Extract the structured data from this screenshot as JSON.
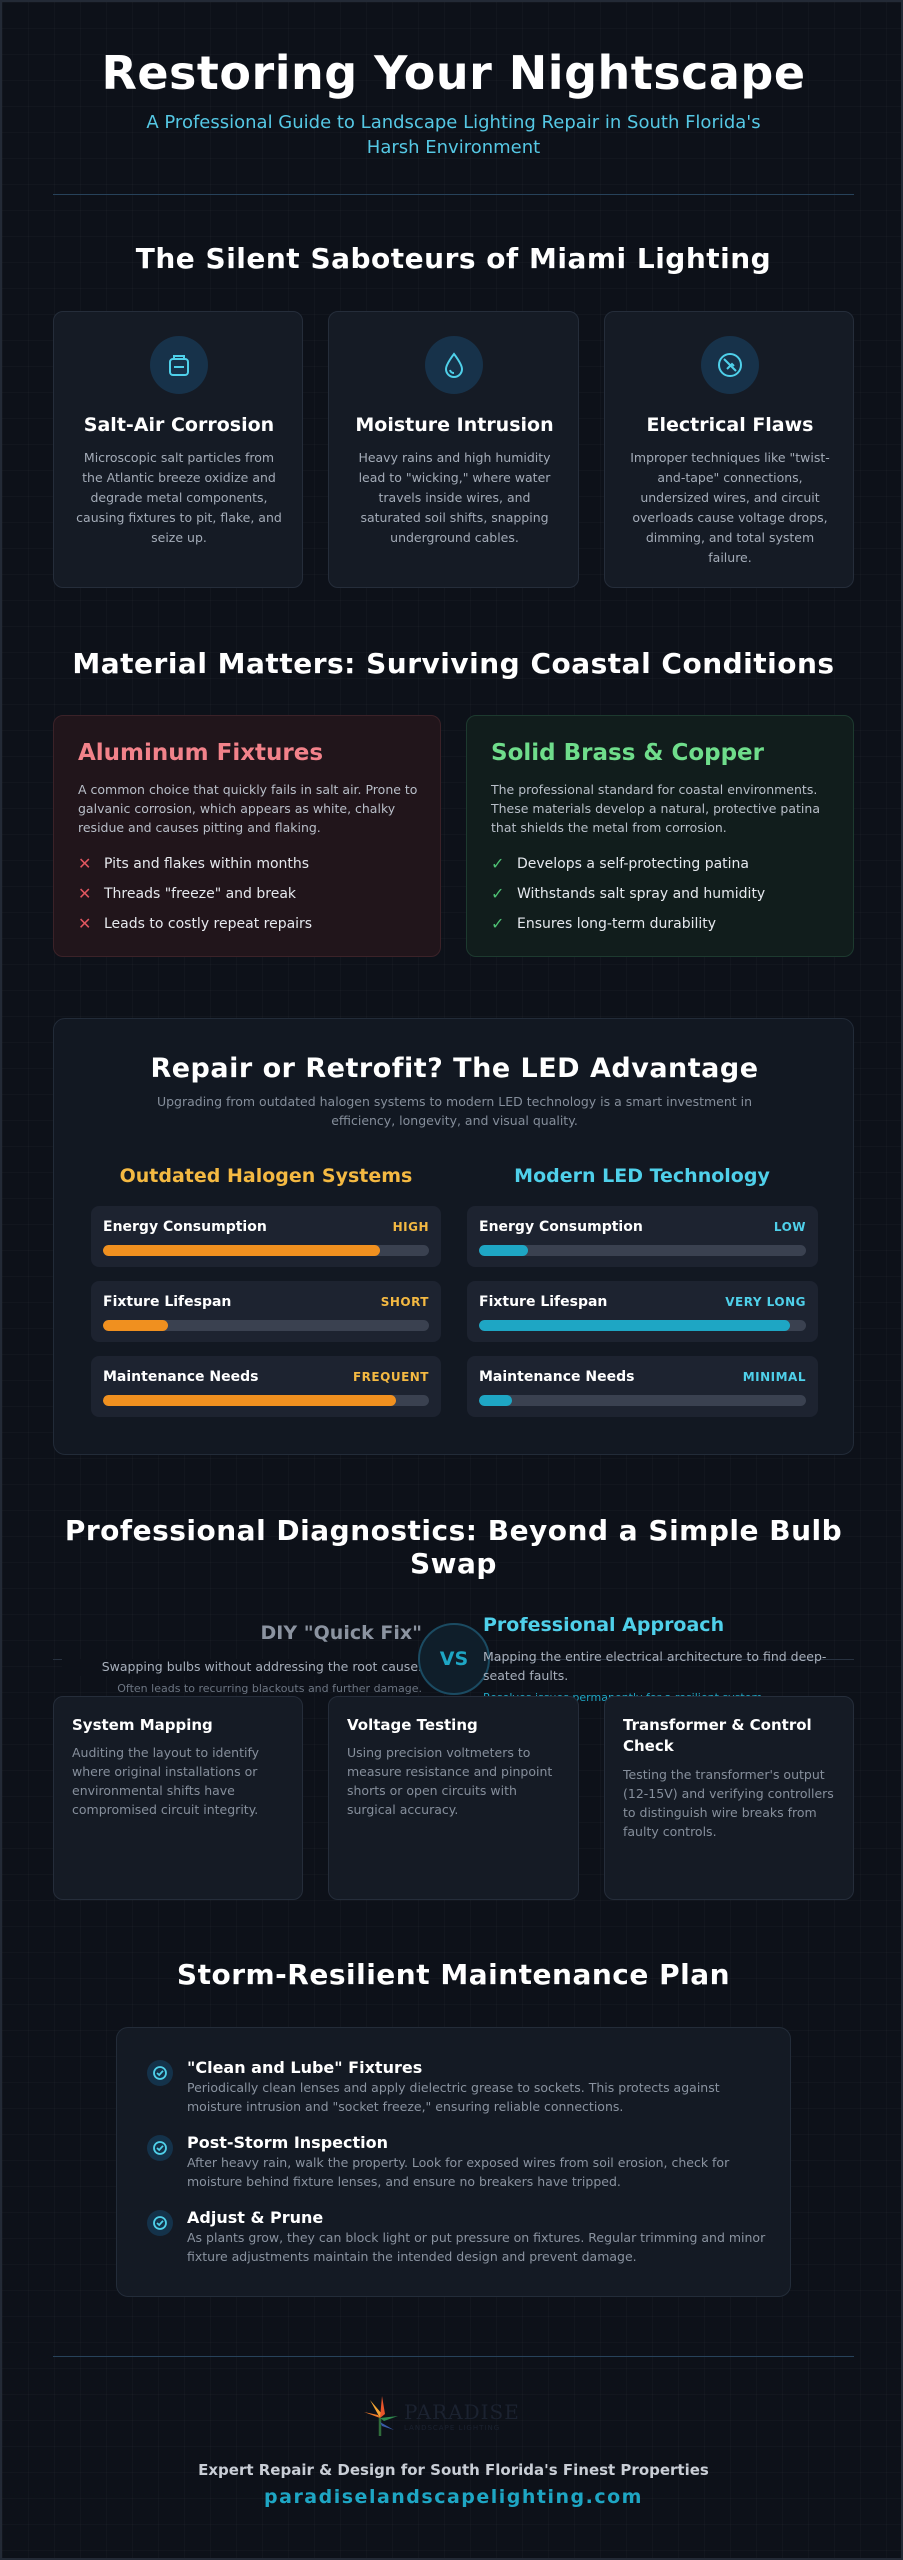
{
  "header": {
    "title": "Restoring Your Nightscape",
    "subtitle": "A Professional Guide to Landscape Lighting Repair in South Florida's Harsh Environment"
  },
  "saboteurs": {
    "title": "The Silent Saboteurs of Miami Lighting",
    "cards": [
      {
        "icon": "salt-container-icon",
        "title": "Salt-Air Corrosion",
        "text": "Microscopic salt particles from the Atlantic breeze oxidize and degrade metal components, causing fixtures to pit, flake, and seize up."
      },
      {
        "icon": "water-drop-icon",
        "title": "Moisture Intrusion",
        "text": "Heavy rains and high humidity lead to \"wicking,\" where water travels inside wires, and saturated soil shifts, snapping underground cables."
      },
      {
        "icon": "electrical-plug-icon",
        "title": "Electrical Flaws",
        "text": "Improper techniques like \"twist-and-tape\" connections, undersized wires, and circuit overloads cause voltage drops, dimming, and total system failure."
      }
    ]
  },
  "materials": {
    "title": "Material Matters: Surviving Coastal Conditions",
    "aluminum": {
      "title": "Aluminum Fixtures",
      "text": "A common choice that quickly fails in salt air. Prone to galvanic corrosion, which appears as white, chalky residue and causes pitting and flaking.",
      "items": [
        "Pits and flakes within months",
        "Threads \"freeze\" and break",
        "Leads to costly repeat repairs"
      ],
      "color": "#f2828a"
    },
    "brass": {
      "title": "Solid Brass & Copper",
      "text": "The professional standard for coastal environments. These materials develop a natural, protective patina that shields the metal from corrosion.",
      "items": [
        "Develops a self-protecting patina",
        "Withstands salt spray and humidity",
        "Ensures long-term durability"
      ],
      "color": "#6fdd8b"
    }
  },
  "led": {
    "title": "Repair or Retrofit? The LED Advantage",
    "subtitle": "Upgrading from outdated halogen systems to modern LED technology is a smart investment in efficiency, longevity, and visual quality.",
    "halogen": {
      "title": "Outdated Halogen Systems",
      "color": "#f4b942",
      "bar_color": "#f0901f",
      "metrics": [
        {
          "label": "Energy Consumption",
          "level": "HIGH",
          "fill": 85
        },
        {
          "label": "Fixture Lifespan",
          "level": "SHORT",
          "fill": 20
        },
        {
          "label": "Maintenance Needs",
          "level": "FREQUENT",
          "fill": 90
        }
      ]
    },
    "led_tech": {
      "title": "Modern LED Technology",
      "color": "#4fd0ea",
      "bar_color": "#1ea6c4",
      "metrics": [
        {
          "label": "Energy Consumption",
          "level": "LOW",
          "fill": 15
        },
        {
          "label": "Fixture Lifespan",
          "level": "VERY LONG",
          "fill": 95
        },
        {
          "label": "Maintenance Needs",
          "level": "MINIMAL",
          "fill": 10
        }
      ]
    }
  },
  "diagnostics": {
    "title": "Professional Diagnostics: Beyond a Simple Bulb Swap",
    "diy": {
      "title": "DIY \"Quick Fix\"",
      "text": "Swapping bulbs without addressing the root cause.",
      "note": "Often leads to recurring blackouts and further damage."
    },
    "vs": "VS",
    "pro": {
      "title": "Professional Approach",
      "text": "Mapping the entire electrical architecture to find deep-seated faults.",
      "note": "Resolves issues permanently for a resilient system."
    },
    "cards": [
      {
        "title": "System Mapping",
        "text": "Auditing the layout to identify where original installations or environmental shifts have compromised circuit integrity."
      },
      {
        "title": "Voltage Testing",
        "text": "Using precision voltmeters to measure resistance and pinpoint shorts or open circuits with surgical accuracy."
      },
      {
        "title": "Transformer & Control Check",
        "text": "Testing the transformer's output (12-15V) and verifying controllers to distinguish wire breaks from faulty controls."
      }
    ]
  },
  "maintenance": {
    "title": "Storm-Resilient Maintenance Plan",
    "items": [
      {
        "title": "\"Clean and Lube\" Fixtures",
        "text": "Periodically clean lenses and apply dielectric grease to sockets. This protects against moisture intrusion and \"socket freeze,\" ensuring reliable connections."
      },
      {
        "title": "Post-Storm Inspection",
        "text": "After heavy rain, walk the property. Look for exposed wires from soil erosion, check for moisture behind fixture lenses, and ensure no breakers have tripped."
      },
      {
        "title": "Adjust & Prune",
        "text": "As plants grow, they can block light or put pressure on fixtures. Regular trimming and minor fixture adjustments maintain the intended design and prevent damage."
      }
    ]
  },
  "footer": {
    "logo_text": "PARADISE",
    "logo_subtext": "LANDSCAPE LIGHTING",
    "tagline": "Expert Repair & Design for South Florida's Finest Properties",
    "website": "paradiselandscapelighting.com"
  }
}
